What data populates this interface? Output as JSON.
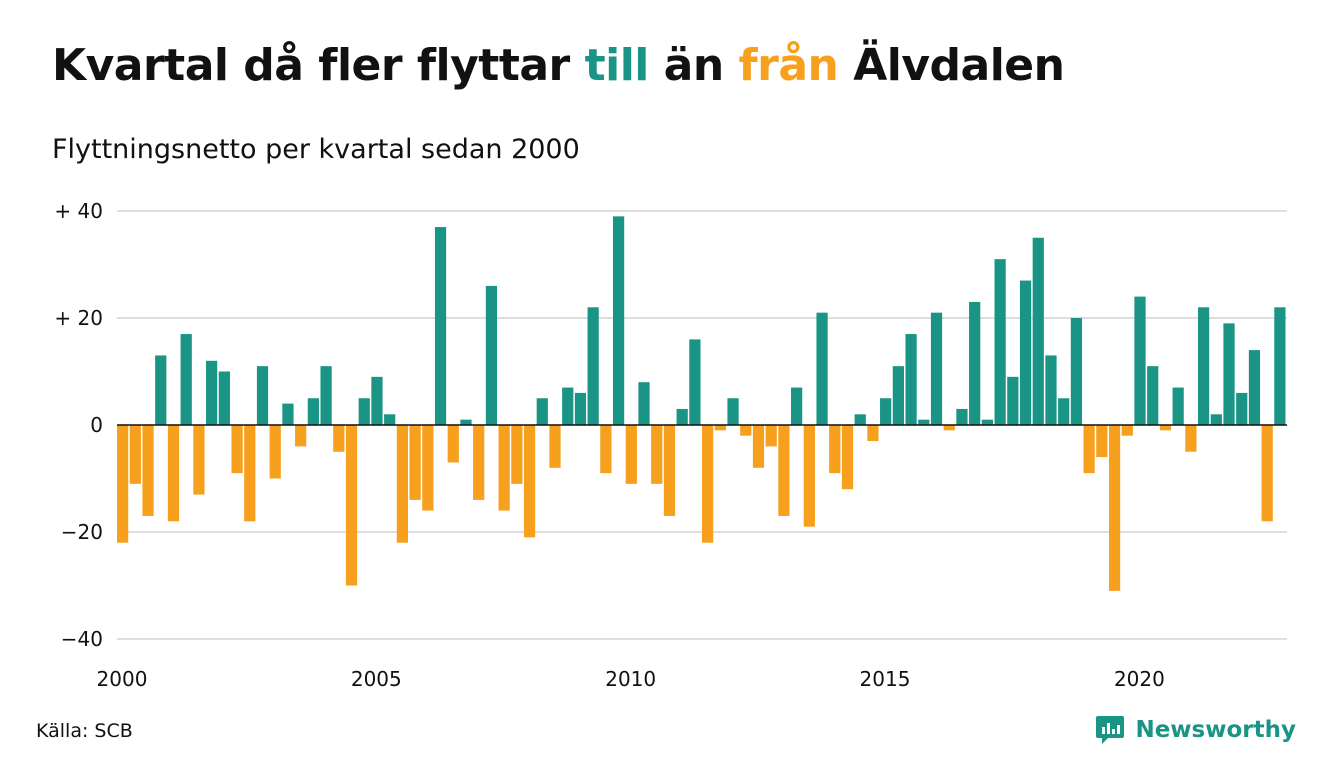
{
  "header": {
    "title_parts": [
      "Kvartal då fler flyttar ",
      "till",
      " än ",
      "från",
      " Älvdalen"
    ],
    "subtitle": "Flyttningsnetto per kvartal sedan 2000"
  },
  "footer": {
    "source": "Källa: SCB",
    "brand": "Newsworthy"
  },
  "colors": {
    "positive": "#1a9485",
    "negative": "#f7a01d",
    "grid": "#dedede",
    "text": "#111111"
  },
  "chart_data": {
    "type": "bar",
    "start": "2000 Q1",
    "y_tick_labels": [
      "+ 40",
      "+ 20",
      "0",
      "−20",
      "−40"
    ],
    "y_ticks": [
      40,
      20,
      0,
      -20,
      -40
    ],
    "x_tick_labels": [
      "2000",
      "2005",
      "2010",
      "2015",
      "2020"
    ],
    "x_ticks": [
      2000,
      2005,
      2010,
      2015,
      2020
    ],
    "ylim": [
      -40,
      40
    ],
    "grid": true,
    "values": [
      -22,
      -11,
      -17,
      13,
      -18,
      17,
      -13,
      12,
      10,
      -9,
      -18,
      11,
      -10,
      4,
      -4,
      5,
      11,
      -5,
      -30,
      5,
      9,
      2,
      -22,
      -14,
      -16,
      37,
      -7,
      1,
      -14,
      26,
      -16,
      -11,
      -21,
      5,
      -8,
      7,
      6,
      22,
      -9,
      39,
      -11,
      8,
      -11,
      -17,
      3,
      16,
      -22,
      -1,
      5,
      -2,
      -8,
      -4,
      -17,
      7,
      -19,
      21,
      -9,
      -12,
      2,
      -3,
      5,
      11,
      17,
      1,
      21,
      -1,
      3,
      23,
      1,
      31,
      9,
      27,
      35,
      13,
      5,
      20,
      -9,
      -6,
      -31,
      -2,
      24,
      11,
      -1,
      7,
      -5,
      22,
      2,
      19,
      6,
      14,
      -18,
      22
    ]
  }
}
